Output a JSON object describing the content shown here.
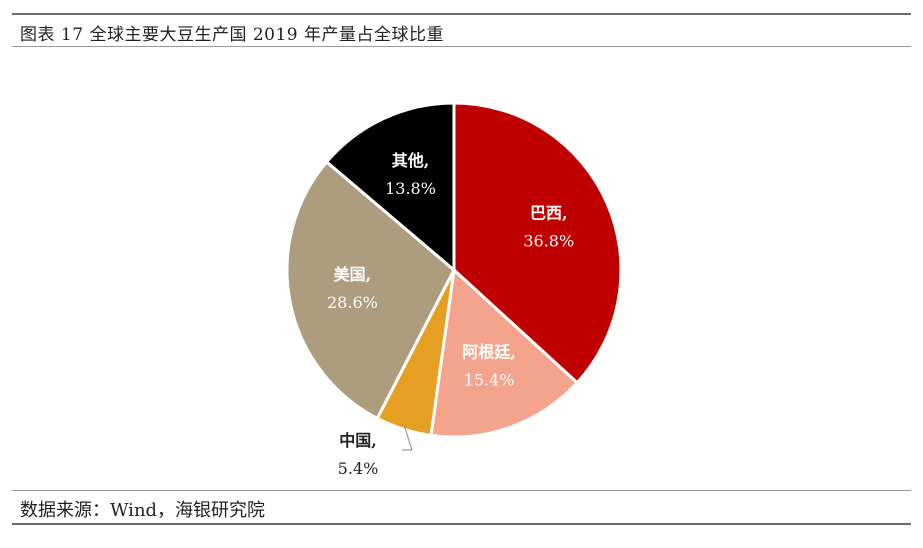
{
  "figure": {
    "title": "图表 17 全球主要大豆生产国 2019 年产量占全球比重",
    "source": "数据来源：Wind，海银研究院"
  },
  "chart_data": {
    "type": "pie",
    "title": "全球主要大豆生产国 2019 年产量占全球比重",
    "start_angle_deg": 0,
    "direction": "clockwise",
    "slices": [
      {
        "name": "巴西",
        "label": "巴西,",
        "value": 36.8,
        "value_label": "36.8%",
        "color": "#C00000",
        "label_color": "#ffffff",
        "value_color": "#ffffff"
      },
      {
        "name": "阿根廷",
        "label": "阿根廷,",
        "value": 15.4,
        "value_label": "15.4%",
        "color": "#F4A38C",
        "label_color": "#ffffff",
        "value_color": "#ffffff"
      },
      {
        "name": "中国",
        "label": "中国,",
        "value": 5.4,
        "value_label": "5.4%",
        "color": "#E5A024",
        "label_color": "#222222",
        "value_color": "#222222",
        "outside": true
      },
      {
        "name": "美国",
        "label": "美国,",
        "value": 28.6,
        "value_label": "28.6%",
        "color": "#AD9C7E",
        "label_color": "#ffffff",
        "value_color": "#ffffff"
      },
      {
        "name": "其他",
        "label": "其他,",
        "value": 13.8,
        "value_label": "13.8%",
        "color": "#000000",
        "label_color": "#ffffff",
        "value_color": "#ffffff"
      }
    ]
  }
}
